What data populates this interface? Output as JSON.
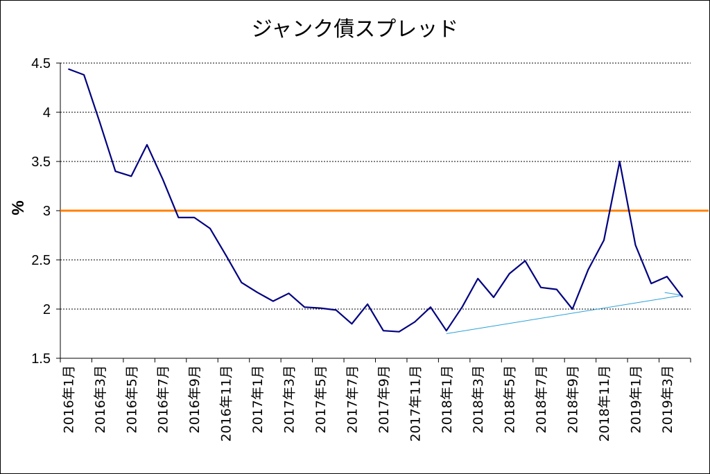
{
  "chart_data": {
    "type": "line",
    "title": "ジャンク債スプレッド",
    "ylabel": "%",
    "xlabel": "",
    "ylim": [
      1.5,
      4.5
    ],
    "yticks": [
      "1.5",
      "2",
      "2.5",
      "3",
      "3.5",
      "4",
      "4.5"
    ],
    "grid": "horizontal dashed",
    "x_tick_labels": [
      "2016年1月",
      "2016年3月",
      "2016年5月",
      "2016年7月",
      "2016年9月",
      "2016年11月",
      "2017年1月",
      "2017年3月",
      "2017年5月",
      "2017年7月",
      "2017年9月",
      "2017年11月",
      "2018年1月",
      "2018年3月",
      "2018年5月",
      "2018年7月",
      "2018年9月",
      "2018年11月",
      "2019年1月",
      "2019年3月"
    ],
    "series": [
      {
        "color": "#000080",
        "values": [
          4.44,
          4.38,
          3.9,
          3.4,
          3.35,
          3.67,
          3.32,
          2.93,
          2.93,
          2.82,
          2.55,
          2.27,
          2.17,
          2.08,
          2.16,
          2.02,
          2.01,
          1.99,
          1.85,
          2.05,
          1.78,
          1.77,
          1.87,
          2.02,
          1.78,
          2.02,
          2.31,
          2.12,
          2.36,
          2.49,
          2.22,
          2.2,
          2.0,
          2.4,
          2.7,
          3.5,
          2.65,
          2.26,
          2.33,
          2.12
        ]
      }
    ],
    "reference_line": {
      "value": 3.0,
      "color": "#FF8000"
    },
    "trend_line": {
      "from_index": 24,
      "from_value": 1.75,
      "to_index": 39,
      "to_value": 2.14,
      "color": "#2AA0D8"
    }
  }
}
